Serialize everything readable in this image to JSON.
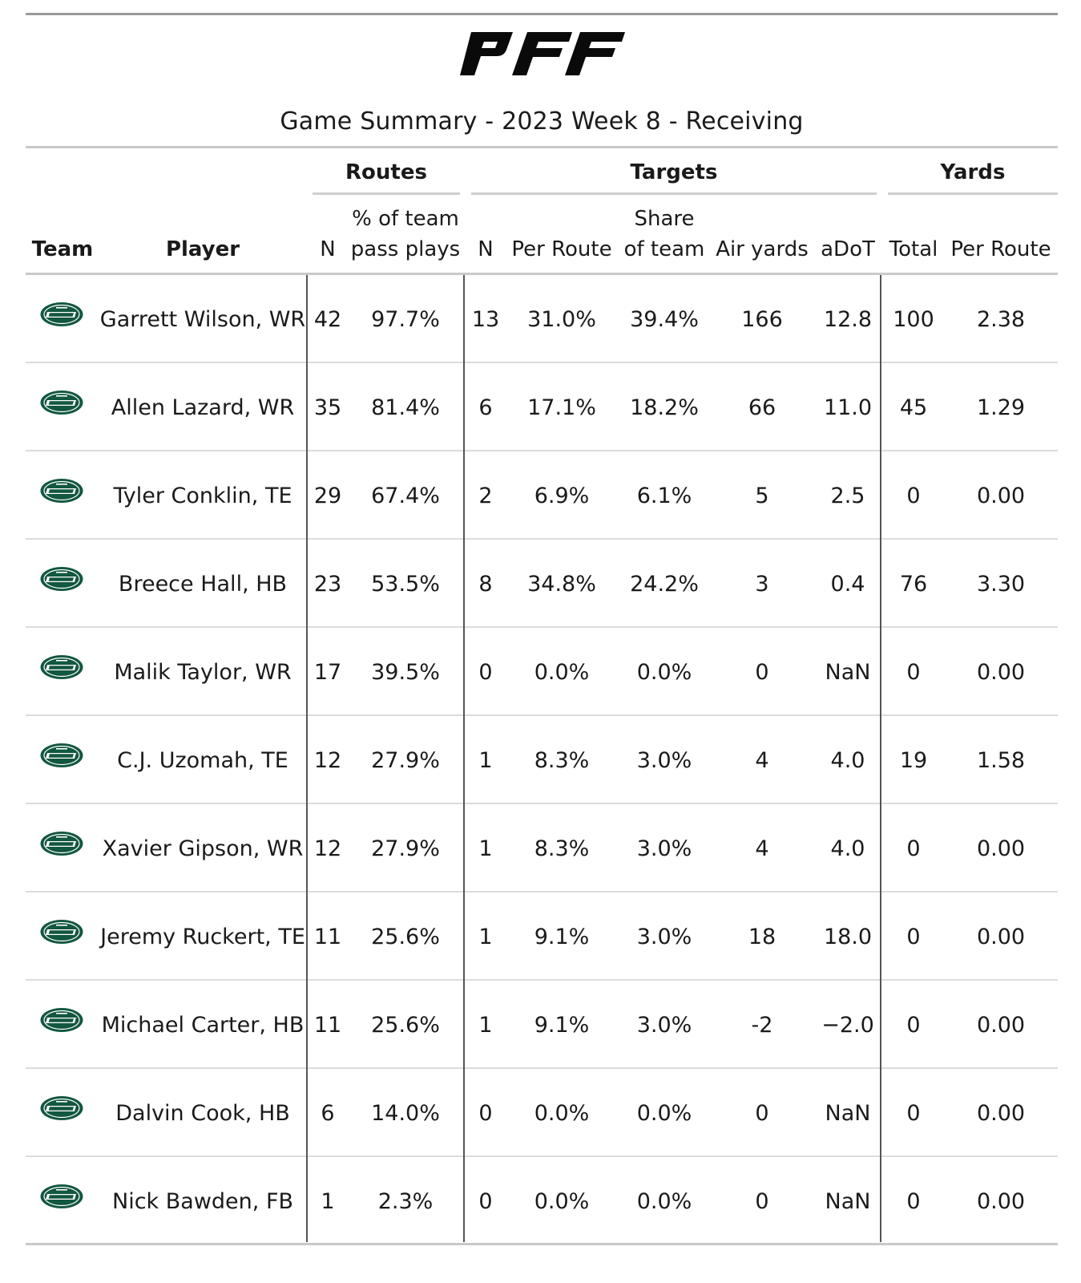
{
  "title": "Game Summary - 2023 Week 8 - Receiving",
  "logo_icon": "pff-logo",
  "team_logo_icon": "jets-logo",
  "colors": {
    "jets_green": "#125740",
    "rule": "#c9c9c9",
    "divider": "#555555"
  },
  "spanners": {
    "routes": "Routes",
    "targets": "Targets",
    "yards": "Yards"
  },
  "columns": {
    "team": "Team",
    "player": "Player",
    "routes_n": "N",
    "routes_pct_line1": "% of team",
    "routes_pct_line2": "pass plays",
    "targets_n": "N",
    "targets_per_route": "Per Route",
    "share_line1": "Share",
    "share_line2": "of team",
    "air_yards": "Air yards",
    "adot": "aDoT",
    "yards_total": "Total",
    "yards_per_route": "Per Route"
  },
  "rows": [
    {
      "player": "Garrett Wilson, WR",
      "routes_n": "42",
      "routes_pct": "97.7%",
      "targets_n": "13",
      "targets_per_route": "31.0%",
      "share": "39.4%",
      "air_yards": "166",
      "adot": "12.8",
      "yards_total": "100",
      "yards_per_route": "2.38"
    },
    {
      "player": "Allen Lazard, WR",
      "routes_n": "35",
      "routes_pct": "81.4%",
      "targets_n": "6",
      "targets_per_route": "17.1%",
      "share": "18.2%",
      "air_yards": "66",
      "adot": "11.0",
      "yards_total": "45",
      "yards_per_route": "1.29"
    },
    {
      "player": "Tyler Conklin, TE",
      "routes_n": "29",
      "routes_pct": "67.4%",
      "targets_n": "2",
      "targets_per_route": "6.9%",
      "share": "6.1%",
      "air_yards": "5",
      "adot": "2.5",
      "yards_total": "0",
      "yards_per_route": "0.00"
    },
    {
      "player": "Breece Hall, HB",
      "routes_n": "23",
      "routes_pct": "53.5%",
      "targets_n": "8",
      "targets_per_route": "34.8%",
      "share": "24.2%",
      "air_yards": "3",
      "adot": "0.4",
      "yards_total": "76",
      "yards_per_route": "3.30"
    },
    {
      "player": "Malik Taylor, WR",
      "routes_n": "17",
      "routes_pct": "39.5%",
      "targets_n": "0",
      "targets_per_route": "0.0%",
      "share": "0.0%",
      "air_yards": "0",
      "adot": "NaN",
      "yards_total": "0",
      "yards_per_route": "0.00"
    },
    {
      "player": "C.J. Uzomah, TE",
      "routes_n": "12",
      "routes_pct": "27.9%",
      "targets_n": "1",
      "targets_per_route": "8.3%",
      "share": "3.0%",
      "air_yards": "4",
      "adot": "4.0",
      "yards_total": "19",
      "yards_per_route": "1.58"
    },
    {
      "player": "Xavier Gipson, WR",
      "routes_n": "12",
      "routes_pct": "27.9%",
      "targets_n": "1",
      "targets_per_route": "8.3%",
      "share": "3.0%",
      "air_yards": "4",
      "adot": "4.0",
      "yards_total": "0",
      "yards_per_route": "0.00"
    },
    {
      "player": "Jeremy Ruckert, TE",
      "routes_n": "11",
      "routes_pct": "25.6%",
      "targets_n": "1",
      "targets_per_route": "9.1%",
      "share": "3.0%",
      "air_yards": "18",
      "adot": "18.0",
      "yards_total": "0",
      "yards_per_route": "0.00"
    },
    {
      "player": "Michael Carter, HB",
      "routes_n": "11",
      "routes_pct": "25.6%",
      "targets_n": "1",
      "targets_per_route": "9.1%",
      "share": "3.0%",
      "air_yards": "-2",
      "adot": "−2.0",
      "yards_total": "0",
      "yards_per_route": "0.00"
    },
    {
      "player": "Dalvin Cook, HB",
      "routes_n": "6",
      "routes_pct": "14.0%",
      "targets_n": "0",
      "targets_per_route": "0.0%",
      "share": "0.0%",
      "air_yards": "0",
      "adot": "NaN",
      "yards_total": "0",
      "yards_per_route": "0.00"
    },
    {
      "player": "Nick Bawden, FB",
      "routes_n": "1",
      "routes_pct": "2.3%",
      "targets_n": "0",
      "targets_per_route": "0.0%",
      "share": "0.0%",
      "air_yards": "0",
      "adot": "NaN",
      "yards_total": "0",
      "yards_per_route": "0.00"
    }
  ]
}
